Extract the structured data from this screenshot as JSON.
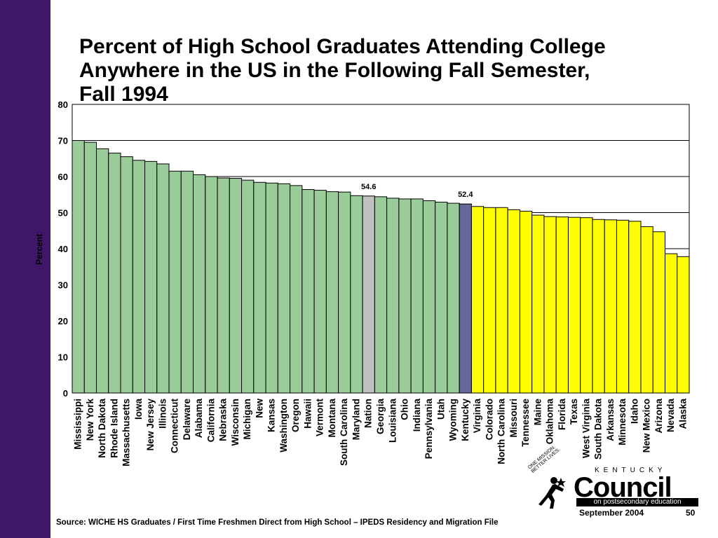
{
  "footer": {
    "source": "Source: WICHE HS Graduates / First Time Freshmen Direct from High School – IPEDS Residency and Migration File",
    "date": "September 2004",
    "page": "50"
  },
  "logo": {
    "name": "Council",
    "state": "KENTUCKY",
    "tagline": "on postsecondary education",
    "motto": "ONE MISSION. BETTER LIVES."
  },
  "chart_data": {
    "type": "bar",
    "title": [
      "Percent of High School Graduates Attending College",
      "Anywhere in the US in the Following Fall Semester,",
      "Fall 1994"
    ],
    "ylabel": "Percent",
    "ylim": [
      0,
      80
    ],
    "yticks": [
      0,
      10,
      20,
      30,
      40,
      50,
      60,
      70,
      80
    ],
    "grid": true,
    "colors": {
      "above": "#99cc99",
      "nation": "#c0c0c0",
      "kentucky": "#666699",
      "below": "#ffff00"
    },
    "categories": [
      "Mississippi",
      "New York",
      "North Dakota",
      "Rhode Island",
      "Massachusetts",
      "Iowa",
      "New Jersey",
      "Illinois",
      "Connecticut",
      "Delaware",
      "Alabama",
      "California",
      "Nebraska",
      "Wisconsin",
      "Michigan",
      "New",
      "Kansas",
      "Washington",
      "Oregon",
      "Hawaii",
      "Vermont",
      "Montana",
      "South Carolina",
      "Maryland",
      "Nation",
      "Georgia",
      "Louisiana",
      "Ohio",
      "Indiana",
      "Pennsylvania",
      "Utah",
      "Wyoming",
      "Kentucky",
      "Virginia",
      "Colorado",
      "North Carolina",
      "Missouri",
      "Tennessee",
      "Maine",
      "Oklahoma",
      "Florida",
      "Texas",
      "West Virginia",
      "South Dakota",
      "Arkansas",
      "Minnesota",
      "Idaho",
      "New Mexico",
      "Arizona",
      "Nevada",
      "Alaska"
    ],
    "values": [
      70.0,
      69.5,
      67.7,
      66.5,
      65.5,
      64.5,
      64.2,
      63.5,
      61.5,
      61.5,
      60.5,
      60.0,
      59.6,
      59.5,
      59.0,
      58.4,
      58.2,
      58.0,
      57.5,
      56.4,
      56.2,
      55.8,
      55.7,
      54.7,
      54.6,
      54.4,
      54.0,
      53.8,
      53.8,
      53.3,
      52.9,
      52.6,
      52.4,
      51.7,
      51.4,
      51.4,
      50.8,
      50.4,
      49.3,
      48.9,
      48.8,
      48.7,
      48.6,
      48.1,
      48.0,
      47.9,
      47.6,
      46.1,
      44.7,
      38.6,
      37.8
    ],
    "data_labels": [
      {
        "category": "Nation",
        "text": "54.6"
      },
      {
        "category": "Kentucky",
        "text": "52.4"
      }
    ]
  }
}
